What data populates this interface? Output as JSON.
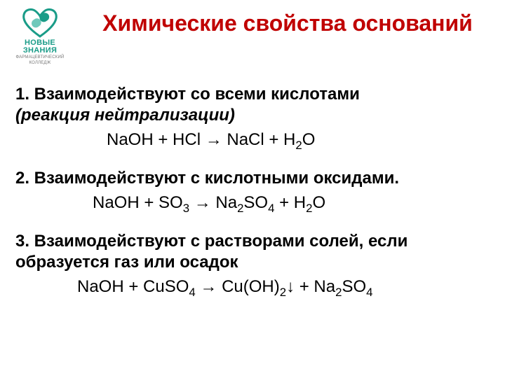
{
  "colors": {
    "title": "#c00000",
    "body": "#000000",
    "logo_primary": "#1a9c88",
    "logo_accent": "#6fc9bb",
    "background": "#ffffff"
  },
  "typography": {
    "title_fontsize": 32,
    "body_fontsize": 24,
    "font_family": "Arial"
  },
  "logo": {
    "brand": "НОВЫЕ ЗНАНИЯ",
    "subtitle": "ФАРМАЦЕВТИЧЕСКИЙ КОЛЛЕДЖ"
  },
  "title": "Химические свойства оснований",
  "points": [
    {
      "heading": "1. Взаимодействуют со всеми кислотами",
      "sub": "(реакция нейтрализации)",
      "equation_html": "NaOH + HCl → NaCl + H<sub>2</sub>O"
    },
    {
      "heading": "2. Взаимодействуют с кислотными оксидами.",
      "equation_html": "NaOH + SO<sub>3</sub> → Na<sub>2</sub>SO<sub>4</sub> + H<sub>2</sub>O"
    },
    {
      "heading": "3. Взаимодействуют с растворами солей, если образуется газ или осадок",
      "equation_html": "NaOH + CuSO<sub>4</sub> → Cu(OH)<sub>2</sub>↓ + Na<sub>2</sub>SO<sub>4</sub>"
    }
  ]
}
